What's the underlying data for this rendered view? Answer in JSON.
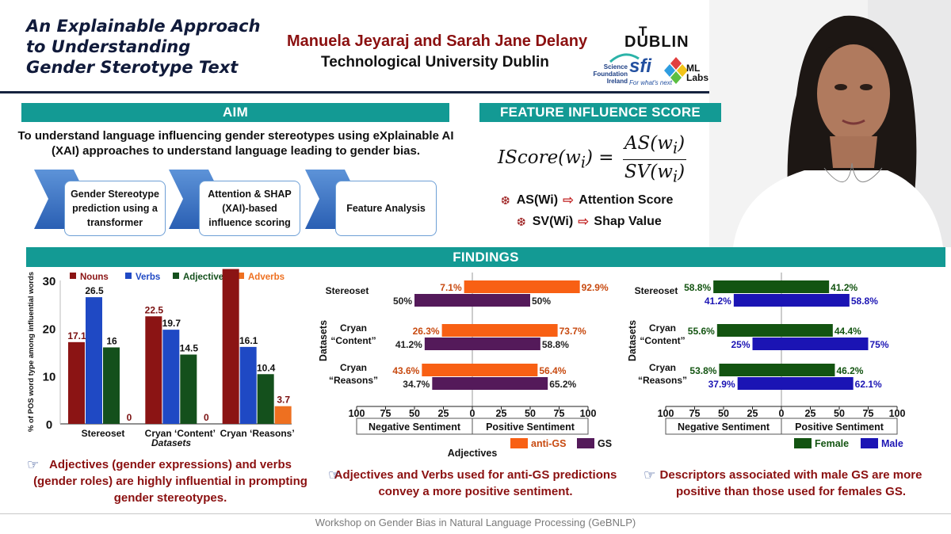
{
  "header": {
    "title_lines": [
      "An Explainable Approach",
      "to Understanding",
      "Gender Sterotype Text"
    ],
    "authors": "Manuela Jeyaraj and Sarah Jane Delany",
    "affiliation": "Technological University Dublin"
  },
  "logos": {
    "tud": {
      "top": "T",
      "name": "DUBLIN"
    },
    "sfi": {
      "small": "Science Foundation Ireland",
      "big": "sfi",
      "tagline": "For what's next"
    },
    "ml": {
      "text": "ML Labs"
    }
  },
  "aim": {
    "heading": "AIM",
    "text": "To understand language influencing gender stereotypes using eXplainable AI (XAI) approaches to understand language leading to gender bias.",
    "steps": [
      "Gender Stereotype prediction using a transformer",
      "Attention & SHAP (XAI)-based influence scoring",
      "Feature Analysis"
    ]
  },
  "feature_influence": {
    "heading": "FEATURE INFLUENCE SCORE",
    "formula_lhs": "IScore(w",
    "formula_num": "AS(w",
    "formula_den": "SV(w",
    "items": [
      {
        "term": "AS(Wi)",
        "meaning": "Attention Score"
      },
      {
        "term": "SV(Wi)",
        "meaning": "Shap Value"
      }
    ]
  },
  "findings": {
    "heading": "FINDINGS",
    "notes": [
      "Adjectives (gender expressions) and verbs (gender roles) are highly influential in prompting gender stereotypes.",
      "Adjectives and Verbs used for anti-GS predictions convey a more positive sentiment.",
      "Descriptors associated with male GS are more positive than those used for females GS."
    ]
  },
  "colors": {
    "teal": "#139a94",
    "nouns": "#8b1414",
    "verbs": "#1f49c4",
    "adjectives": "#14501c",
    "adverbs": "#ee7020",
    "anti_gs": "#f86014",
    "gs": "#541a5a",
    "female": "#135411",
    "male": "#1b14b4",
    "dark_red_text": "#8b1010"
  },
  "footer": "Workshop on Gender Bias in Natural Language Processing (GeBNLP)",
  "chart_data": [
    {
      "type": "bar",
      "ylabel": "% of POS word type among influential words",
      "xlabel": "Datasets",
      "categories": [
        "Stereoset",
        "Cryan ‘Content’",
        "Cryan ‘Reasons’"
      ],
      "series": [
        {
          "name": "Nouns",
          "values": [
            17.1,
            22.5,
            32.4
          ],
          "labels": [
            "17.1",
            "",
            "32.4"
          ]
        },
        {
          "name": "Verbs",
          "values": [
            26.5,
            19.7,
            16.1
          ],
          "labels": [
            "26.5",
            "19.7",
            "16.1"
          ]
        },
        {
          "name": "Adjectives",
          "values": [
            16,
            14.5,
            10.4
          ],
          "labels": [
            "16",
            "14.5",
            "10.4"
          ]
        },
        {
          "name": "Adverbs",
          "values": [
            0,
            0,
            3.7
          ],
          "labels": [
            "0",
            "0",
            "3.7"
          ]
        }
      ],
      "extra_labels": [
        "22.5"
      ],
      "yticks": [
        0,
        10,
        20,
        30
      ],
      "ylim": [
        0,
        30
      ],
      "legend": "top"
    },
    {
      "type": "bar",
      "orientation": "horizontal-diverging",
      "ylabel": "Datasets",
      "xlabel": "Adjectives",
      "categories": [
        [
          "Stereoset"
        ],
        [
          "Cryan",
          "“Content”"
        ],
        [
          "Cryan",
          "“Reasons”"
        ]
      ],
      "series": [
        {
          "name": "anti-GS",
          "negative": [
            7.1,
            26.3,
            43.6
          ],
          "positive": [
            92.9,
            73.7,
            56.4
          ],
          "neg_labels": [
            "7.1%",
            "26.3%",
            "43.6%"
          ],
          "pos_labels": [
            "92.9%",
            "73.7%",
            "56.4%"
          ]
        },
        {
          "name": "GS",
          "negative": [
            50,
            41.2,
            34.7
          ],
          "positive": [
            50,
            58.8,
            65.2
          ],
          "neg_labels": [
            "50%",
            "41.2%",
            "34.7%"
          ],
          "pos_labels": [
            "50%",
            "58.8%",
            "65.2%"
          ]
        }
      ],
      "xticks": [
        "100",
        "75",
        "50",
        "25",
        "0",
        "25",
        "50",
        "75",
        "100"
      ],
      "xlim": [
        -100,
        100
      ],
      "axis_sides": [
        "Negative Sentiment",
        "Positive Sentiment"
      ],
      "legend": "bottom"
    },
    {
      "type": "bar",
      "orientation": "horizontal-diverging",
      "ylabel": "Datasets",
      "xlabel": "",
      "categories": [
        [
          "Stereoset"
        ],
        [
          "Cryan",
          "“Content”"
        ],
        [
          "Cryan",
          "“Reasons”"
        ]
      ],
      "series": [
        {
          "name": "Female",
          "negative": [
            58.8,
            55.6,
            53.8
          ],
          "positive": [
            41.2,
            44.4,
            46.2
          ],
          "neg_labels": [
            "58.8%",
            "55.6%",
            "53.8%"
          ],
          "pos_labels": [
            "41.2%",
            "44.4%",
            "46.2%"
          ]
        },
        {
          "name": "Male",
          "negative": [
            41.2,
            25,
            37.9
          ],
          "positive": [
            58.8,
            75,
            62.1
          ],
          "neg_labels": [
            "41.2%",
            "25%",
            "37.9%"
          ],
          "pos_labels": [
            "58.8%",
            "75%",
            "62.1%"
          ]
        }
      ],
      "xticks": [
        "100",
        "75",
        "50",
        "25",
        "0",
        "25",
        "50",
        "75",
        "100"
      ],
      "xlim": [
        -100,
        100
      ],
      "axis_sides": [
        "Negative Sentiment",
        "Positive Sentiment"
      ],
      "legend": "bottom"
    }
  ]
}
